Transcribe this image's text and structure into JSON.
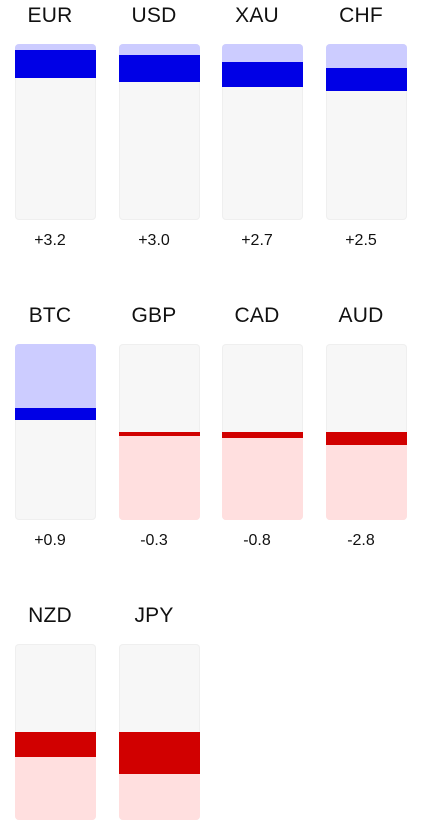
{
  "colors": {
    "positive_dark": "#0000e6",
    "positive_light": "#ccccff",
    "negative_dark": "#d10000",
    "negative_light": "#ffdfdf",
    "track": "#f7f7f7"
  },
  "scale": {
    "max_abs_change": 3.2
  },
  "currencies": [
    {
      "code": "EUR",
      "change": 3.2,
      "change_label": "+3.2"
    },
    {
      "code": "USD",
      "change": 3.0,
      "change_label": "+3.0"
    },
    {
      "code": "XAU",
      "change": 2.7,
      "change_label": "+2.7"
    },
    {
      "code": "CHF",
      "change": 2.5,
      "change_label": "+2.5"
    },
    {
      "code": "BTC",
      "change": 0.9,
      "change_label": "+0.9"
    },
    {
      "code": "GBP",
      "change": -0.3,
      "change_label": "-0.3"
    },
    {
      "code": "CAD",
      "change": -0.8,
      "change_label": "-0.8"
    },
    {
      "code": "AUD",
      "change": -2.8,
      "change_label": "-2.8"
    },
    {
      "code": "NZD",
      "change": -6.1,
      "change_label": ""
    },
    {
      "code": "JPY",
      "change": -10.5,
      "change_label": ""
    }
  ]
}
